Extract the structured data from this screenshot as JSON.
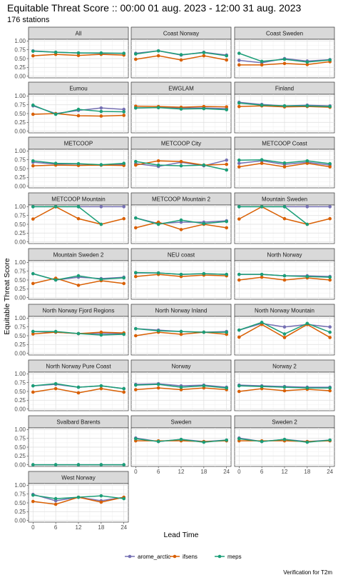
{
  "title": "Equitable Threat Score :: 00:00 01 aug. 2023 - 12:00 31 aug. 2023",
  "subtitle": "176 stations",
  "caption": "Verification for T2m",
  "colors": {
    "arome_arctic": "#7570b3",
    "ifsens": "#d95f02",
    "meps": "#1b9e77"
  },
  "chart_data": {
    "type": "line",
    "facet_grid": {
      "columns": 3
    },
    "xlabel": "Lead Time",
    "ylabel": "Equitable Threat Score",
    "x": [
      0,
      6,
      12,
      18,
      24
    ],
    "x_ticks": [
      "0",
      "6",
      "12",
      "18",
      "24"
    ],
    "ylim": [
      0,
      1
    ],
    "y_ticks": [
      "0.00",
      "0.25",
      "0.50",
      "0.75",
      "1.00"
    ],
    "grid": true,
    "legend": {
      "position": "bottom",
      "entries": [
        "arome_arctic",
        "ifsens",
        "meps"
      ]
    },
    "panels": [
      {
        "name": "All",
        "series": [
          {
            "name": "arome_arctic",
            "values": [
              0.72,
              0.68,
              0.66,
              0.65,
              0.65
            ]
          },
          {
            "name": "ifsens",
            "values": [
              0.58,
              0.62,
              0.59,
              0.62,
              0.6
            ]
          },
          {
            "name": "meps",
            "values": [
              0.71,
              0.68,
              0.66,
              0.66,
              0.65
            ]
          }
        ]
      },
      {
        "name": "Coast Norway",
        "series": [
          {
            "name": "arome_arctic",
            "values": [
              0.65,
              0.72,
              0.6,
              0.68,
              0.6
            ]
          },
          {
            "name": "ifsens",
            "values": [
              0.48,
              0.58,
              0.46,
              0.58,
              0.46
            ]
          },
          {
            "name": "meps",
            "values": [
              0.63,
              0.72,
              0.61,
              0.67,
              0.58
            ]
          }
        ]
      },
      {
        "name": "Coast Sweden",
        "series": [
          {
            "name": "arome_arctic",
            "values": [
              0.45,
              0.38,
              0.5,
              0.43,
              0.47
            ]
          },
          {
            "name": "ifsens",
            "values": [
              0.32,
              0.32,
              0.36,
              0.33,
              0.41
            ]
          },
          {
            "name": "meps",
            "values": [
              0.65,
              0.42,
              0.48,
              0.4,
              0.46
            ]
          }
        ]
      },
      {
        "name": "Eumou",
        "series": [
          {
            "name": "arome_arctic",
            "values": [
              0.72,
              0.5,
              0.59,
              0.66,
              0.62
            ]
          },
          {
            "name": "ifsens",
            "values": [
              0.48,
              0.5,
              0.44,
              0.43,
              0.45
            ]
          },
          {
            "name": "meps",
            "values": [
              0.74,
              0.48,
              0.62,
              0.56,
              0.55
            ]
          }
        ]
      },
      {
        "name": "EWGLAM",
        "series": [
          {
            "name": "arome_arctic",
            "values": [
              0.66,
              0.67,
              0.66,
              0.66,
              0.64
            ]
          },
          {
            "name": "ifsens",
            "values": [
              0.71,
              0.7,
              0.68,
              0.7,
              0.69
            ]
          },
          {
            "name": "meps",
            "values": [
              0.66,
              0.67,
              0.63,
              0.64,
              0.61
            ]
          }
        ]
      },
      {
        "name": "Finland",
        "series": [
          {
            "name": "arome_arctic",
            "values": [
              0.82,
              0.76,
              0.72,
              0.74,
              0.72
            ]
          },
          {
            "name": "ifsens",
            "values": [
              0.7,
              0.72,
              0.69,
              0.7,
              0.68
            ]
          },
          {
            "name": "meps",
            "values": [
              0.8,
              0.74,
              0.72,
              0.72,
              0.7
            ]
          }
        ]
      },
      {
        "name": "METCOOP",
        "series": [
          {
            "name": "arome_arctic",
            "values": [
              0.68,
              0.63,
              0.63,
              0.6,
              0.62
            ]
          },
          {
            "name": "ifsens",
            "values": [
              0.58,
              0.6,
              0.59,
              0.6,
              0.59
            ]
          },
          {
            "name": "meps",
            "values": [
              0.72,
              0.65,
              0.64,
              0.61,
              0.65
            ]
          }
        ]
      },
      {
        "name": "METCOOP City",
        "series": [
          {
            "name": "arome_arctic",
            "values": [
              0.64,
              0.56,
              0.68,
              0.58,
              0.74
            ]
          },
          {
            "name": "ifsens",
            "values": [
              0.6,
              0.72,
              0.7,
              0.6,
              0.62
            ]
          },
          {
            "name": "meps",
            "values": [
              0.7,
              0.6,
              0.58,
              0.6,
              0.46
            ]
          }
        ]
      },
      {
        "name": "METCOOP Coast",
        "series": [
          {
            "name": "arome_arctic",
            "values": [
              0.65,
              0.72,
              0.62,
              0.68,
              0.6
            ]
          },
          {
            "name": "ifsens",
            "values": [
              0.55,
              0.65,
              0.55,
              0.65,
              0.55
            ]
          },
          {
            "name": "meps",
            "values": [
              0.74,
              0.75,
              0.66,
              0.72,
              0.64
            ]
          }
        ]
      },
      {
        "name": "METCOOP Mountain",
        "series": [
          {
            "name": "arome_arctic",
            "values": [
              1.0,
              1.0,
              1.0,
              1.0,
              1.0
            ]
          },
          {
            "name": "ifsens",
            "values": [
              0.65,
              1.0,
              0.66,
              0.5,
              0.66
            ]
          },
          {
            "name": "meps",
            "values": [
              1.0,
              1.0,
              1.0,
              0.5,
              null
            ]
          }
        ]
      },
      {
        "name": "METCOOP Mountain 2",
        "series": [
          {
            "name": "arome_arctic",
            "values": [
              0.68,
              0.52,
              0.56,
              0.56,
              0.6
            ]
          },
          {
            "name": "ifsens",
            "values": [
              0.4,
              0.56,
              0.35,
              0.5,
              0.4
            ]
          },
          {
            "name": "meps",
            "values": [
              0.68,
              0.5,
              0.62,
              0.52,
              0.58
            ]
          }
        ]
      },
      {
        "name": "Mountain Sweden",
        "series": [
          {
            "name": "arome_arctic",
            "values": [
              1.0,
              1.0,
              1.0,
              1.0,
              1.0
            ]
          },
          {
            "name": "ifsens",
            "values": [
              0.65,
              1.0,
              0.66,
              0.5,
              0.66
            ]
          },
          {
            "name": "meps",
            "values": [
              1.0,
              1.0,
              1.0,
              0.5,
              null
            ]
          }
        ]
      },
      {
        "name": "Mountain Sweden 2",
        "series": [
          {
            "name": "arome_arctic",
            "values": [
              0.68,
              0.5,
              0.58,
              0.54,
              0.58
            ]
          },
          {
            "name": "ifsens",
            "values": [
              0.4,
              0.55,
              0.35,
              0.48,
              0.4
            ]
          },
          {
            "name": "meps",
            "values": [
              0.68,
              0.5,
              0.62,
              0.52,
              0.56
            ]
          }
        ]
      },
      {
        "name": "NEU coast",
        "series": [
          {
            "name": "arome_arctic",
            "values": [
              0.7,
              0.7,
              0.66,
              0.68,
              0.66
            ]
          },
          {
            "name": "ifsens",
            "values": [
              0.6,
              0.66,
              0.6,
              0.64,
              0.62
            ]
          },
          {
            "name": "meps",
            "values": [
              0.71,
              0.7,
              0.66,
              0.68,
              0.66
            ]
          }
        ]
      },
      {
        "name": "North Norway",
        "series": [
          {
            "name": "arome_arctic",
            "values": [
              0.66,
              0.66,
              0.62,
              0.62,
              0.6
            ]
          },
          {
            "name": "ifsens",
            "values": [
              0.5,
              0.58,
              0.5,
              0.56,
              0.5
            ]
          },
          {
            "name": "meps",
            "values": [
              0.66,
              0.66,
              0.62,
              0.6,
              0.58
            ]
          }
        ]
      },
      {
        "name": "North Norway Fjord Regions",
        "series": [
          {
            "name": "arome_arctic",
            "values": [
              0.62,
              0.6,
              0.56,
              0.56,
              0.56
            ]
          },
          {
            "name": "ifsens",
            "values": [
              0.55,
              0.6,
              0.56,
              0.6,
              0.58
            ]
          },
          {
            "name": "meps",
            "values": [
              0.62,
              0.62,
              0.56,
              0.52,
              0.54
            ]
          }
        ]
      },
      {
        "name": "North Norway Inland",
        "series": [
          {
            "name": "arome_arctic",
            "values": [
              0.7,
              0.66,
              0.62,
              0.6,
              0.62
            ]
          },
          {
            "name": "ifsens",
            "values": [
              0.5,
              0.6,
              0.54,
              0.6,
              0.54
            ]
          },
          {
            "name": "meps",
            "values": [
              0.7,
              0.64,
              0.62,
              0.6,
              0.6
            ]
          }
        ]
      },
      {
        "name": "North Norway Mountain",
        "series": [
          {
            "name": "arome_arctic",
            "values": [
              0.66,
              0.85,
              0.75,
              0.82,
              0.75
            ]
          },
          {
            "name": "ifsens",
            "values": [
              0.46,
              0.82,
              0.45,
              0.82,
              0.45
            ]
          },
          {
            "name": "meps",
            "values": [
              0.66,
              0.88,
              0.55,
              0.85,
              0.6
            ]
          }
        ]
      },
      {
        "name": "North Norway Pure Coast",
        "series": [
          {
            "name": "arome_arctic",
            "values": [
              0.66,
              0.7,
              0.62,
              0.66,
              0.58
            ]
          },
          {
            "name": "ifsens",
            "values": [
              0.48,
              0.58,
              0.46,
              0.58,
              0.48
            ]
          },
          {
            "name": "meps",
            "values": [
              0.66,
              0.72,
              0.62,
              0.66,
              0.58
            ]
          }
        ]
      },
      {
        "name": "Norway",
        "series": [
          {
            "name": "arome_arctic",
            "values": [
              0.7,
              0.72,
              0.66,
              0.68,
              0.62
            ]
          },
          {
            "name": "ifsens",
            "values": [
              0.55,
              0.6,
              0.55,
              0.6,
              0.55
            ]
          },
          {
            "name": "meps",
            "values": [
              0.68,
              0.7,
              0.62,
              0.66,
              0.6
            ]
          }
        ]
      },
      {
        "name": "Norway 2",
        "series": [
          {
            "name": "arome_arctic",
            "values": [
              0.68,
              0.66,
              0.64,
              0.62,
              0.62
            ]
          },
          {
            "name": "ifsens",
            "values": [
              0.5,
              0.58,
              0.52,
              0.56,
              0.52
            ]
          },
          {
            "name": "meps",
            "values": [
              0.66,
              0.64,
              0.62,
              0.6,
              0.6
            ]
          }
        ]
      },
      {
        "name": "Svalbard Barents",
        "series": [
          {
            "name": "arome_arctic",
            "values": [
              0.0,
              0.0,
              0.0,
              0.0,
              0.0
            ]
          },
          {
            "name": "ifsens",
            "values": [
              null,
              null,
              null,
              null,
              null
            ]
          },
          {
            "name": "meps",
            "values": [
              0.0,
              0.0,
              0.0,
              0.0,
              0.0
            ]
          }
        ]
      },
      {
        "name": "Sweden",
        "series": [
          {
            "name": "arome_arctic",
            "values": [
              0.76,
              0.66,
              0.72,
              0.66,
              0.7
            ]
          },
          {
            "name": "ifsens",
            "values": [
              0.68,
              0.68,
              0.68,
              0.66,
              0.68
            ]
          },
          {
            "name": "meps",
            "values": [
              0.74,
              0.66,
              0.72,
              0.64,
              0.7
            ]
          }
        ]
      },
      {
        "name": "Sweden 2",
        "series": [
          {
            "name": "arome_arctic",
            "values": [
              0.76,
              0.66,
              0.72,
              0.66,
              0.7
            ]
          },
          {
            "name": "ifsens",
            "values": [
              0.68,
              0.68,
              0.68,
              0.66,
              0.68
            ]
          },
          {
            "name": "meps",
            "values": [
              0.74,
              0.66,
              0.72,
              0.64,
              0.7
            ]
          }
        ]
      },
      {
        "name": "West Norway",
        "series": [
          {
            "name": "arome_arctic",
            "values": [
              0.74,
              0.56,
              0.66,
              0.56,
              0.66
            ]
          },
          {
            "name": "ifsens",
            "values": [
              0.54,
              0.46,
              0.66,
              0.52,
              0.66
            ]
          },
          {
            "name": "meps",
            "values": [
              0.72,
              0.62,
              0.66,
              0.7,
              0.62
            ]
          }
        ]
      }
    ]
  }
}
